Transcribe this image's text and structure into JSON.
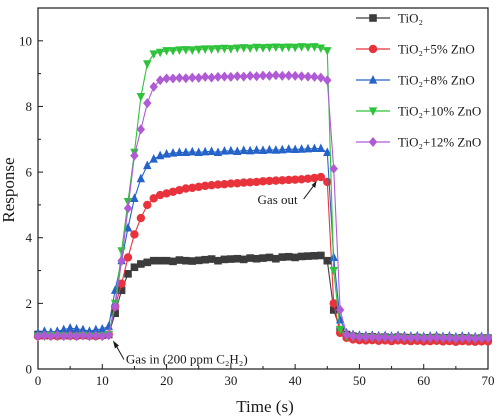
{
  "chart_data": {
    "type": "line",
    "xlabel": "Time (s)",
    "ylabel": "Response",
    "xlim": [
      0,
      70
    ],
    "ylim": [
      0,
      11
    ],
    "xticks": [
      0,
      10,
      20,
      30,
      40,
      50,
      60,
      70
    ],
    "yticks": [
      0,
      2,
      4,
      6,
      8,
      10
    ],
    "grid": false,
    "legend": "top-right",
    "x": [
      0,
      1,
      2,
      3,
      4,
      5,
      6,
      7,
      8,
      9,
      10,
      11,
      12,
      13,
      14,
      15,
      16,
      17,
      18,
      19,
      20,
      21,
      22,
      23,
      24,
      25,
      26,
      27,
      28,
      29,
      30,
      31,
      32,
      33,
      34,
      35,
      36,
      37,
      38,
      39,
      40,
      41,
      42,
      43,
      44,
      45,
      46,
      47,
      48,
      49,
      50,
      51,
      52,
      53,
      54,
      55,
      56,
      57,
      58,
      59,
      60,
      61,
      62,
      63,
      64,
      65,
      66,
      67,
      68,
      69,
      70
    ],
    "series": [
      {
        "name": "TiO₂",
        "color": "#3c3c3c",
        "marker": "square",
        "values": [
          1.05,
          1.02,
          1.03,
          1.04,
          1.02,
          1.05,
          1.03,
          1.04,
          1.02,
          1.05,
          1.03,
          1.05,
          1.7,
          2.4,
          2.9,
          3.1,
          3.2,
          3.25,
          3.3,
          3.3,
          3.3,
          3.28,
          3.32,
          3.3,
          3.29,
          3.31,
          3.33,
          3.35,
          3.3,
          3.34,
          3.35,
          3.36,
          3.34,
          3.38,
          3.36,
          3.38,
          3.4,
          3.36,
          3.41,
          3.42,
          3.4,
          3.43,
          3.44,
          3.45,
          3.46,
          3.3,
          1.8,
          1.2,
          1.05,
          1.0,
          0.98,
          0.97,
          0.98,
          0.96,
          0.97,
          0.95,
          0.97,
          0.96,
          0.95,
          0.96,
          0.94,
          0.95,
          0.96,
          0.94,
          0.95,
          0.93,
          0.95,
          0.94,
          0.93,
          0.94,
          0.94
        ]
      },
      {
        "name": "TiO₂+5% ZnO",
        "color": "#e8333c",
        "marker": "circle",
        "values": [
          1.0,
          1.02,
          1.01,
          1.0,
          1.02,
          1.01,
          1.0,
          1.02,
          1.01,
          1.0,
          1.02,
          1.05,
          1.9,
          2.6,
          3.4,
          4.1,
          4.6,
          5.0,
          5.2,
          5.3,
          5.35,
          5.4,
          5.45,
          5.5,
          5.52,
          5.55,
          5.58,
          5.6,
          5.62,
          5.63,
          5.65,
          5.66,
          5.68,
          5.69,
          5.7,
          5.72,
          5.73,
          5.74,
          5.75,
          5.76,
          5.77,
          5.78,
          5.8,
          5.82,
          5.85,
          5.7,
          2.0,
          1.1,
          0.95,
          0.9,
          0.88,
          0.87,
          0.88,
          0.86,
          0.87,
          0.85,
          0.87,
          0.86,
          0.85,
          0.86,
          0.84,
          0.85,
          0.86,
          0.84,
          0.85,
          0.83,
          0.85,
          0.84,
          0.83,
          0.84,
          0.84
        ]
      },
      {
        "name": "TiO₂+8% ZnO",
        "color": "#2563c9",
        "marker": "triangle-up",
        "values": [
          1.1,
          1.15,
          1.12,
          1.15,
          1.2,
          1.25,
          1.22,
          1.2,
          1.15,
          1.2,
          1.22,
          1.3,
          2.4,
          3.3,
          4.3,
          5.2,
          5.8,
          6.2,
          6.4,
          6.5,
          6.55,
          6.58,
          6.6,
          6.6,
          6.62,
          6.6,
          6.62,
          6.63,
          6.6,
          6.64,
          6.65,
          6.63,
          6.66,
          6.65,
          6.67,
          6.66,
          6.68,
          6.67,
          6.68,
          6.7,
          6.69,
          6.7,
          6.71,
          6.72,
          6.72,
          6.6,
          3.4,
          1.5,
          1.1,
          1.05,
          1.03,
          1.02,
          1.03,
          1.01,
          1.02,
          1.0,
          1.02,
          1.01,
          1.0,
          1.01,
          0.99,
          1.0,
          1.01,
          0.99,
          1.0,
          0.98,
          1.0,
          0.99,
          0.98,
          0.99,
          0.99
        ]
      },
      {
        "name": "TiO₂+10% ZnO",
        "color": "#2fc23b",
        "marker": "triangle-down",
        "values": [
          1.0,
          1.0,
          1.02,
          1.0,
          1.01,
          1.0,
          1.0,
          1.02,
          1.0,
          1.0,
          1.01,
          1.05,
          2.0,
          3.6,
          5.1,
          6.6,
          8.3,
          9.3,
          9.6,
          9.65,
          9.7,
          9.7,
          9.72,
          9.73,
          9.72,
          9.74,
          9.75,
          9.75,
          9.76,
          9.77,
          9.76,
          9.78,
          9.79,
          9.78,
          9.8,
          9.79,
          9.8,
          9.81,
          9.8,
          9.81,
          9.8,
          9.82,
          9.81,
          9.82,
          9.78,
          9.7,
          3.0,
          1.2,
          1.0,
          0.97,
          0.96,
          0.95,
          0.96,
          0.94,
          0.95,
          0.93,
          0.95,
          0.94,
          0.93,
          0.94,
          0.92,
          0.93,
          0.94,
          0.92,
          0.93,
          0.91,
          0.93,
          0.92,
          0.91,
          0.92,
          0.92
        ]
      },
      {
        "name": "TiO₂+12% ZnO",
        "color": "#b05bd6",
        "marker": "diamond",
        "values": [
          1.0,
          1.02,
          1.0,
          1.03,
          1.0,
          1.02,
          1.0,
          1.03,
          1.0,
          1.02,
          1.0,
          1.03,
          1.9,
          3.3,
          4.9,
          6.5,
          7.3,
          8.1,
          8.6,
          8.8,
          8.85,
          8.85,
          8.87,
          8.86,
          8.88,
          8.87,
          8.9,
          8.88,
          8.9,
          8.91,
          8.9,
          8.92,
          8.91,
          8.93,
          8.92,
          8.94,
          8.93,
          8.95,
          8.93,
          8.94,
          8.93,
          8.92,
          8.91,
          8.9,
          8.88,
          8.8,
          6.1,
          1.8,
          1.05,
          1.0,
          0.98,
          0.97,
          0.98,
          0.96,
          0.97,
          0.95,
          0.97,
          0.96,
          0.95,
          0.96,
          0.94,
          0.95,
          0.96,
          0.94,
          0.95,
          0.93,
          0.95,
          0.94,
          0.93,
          0.94,
          0.94
        ]
      }
    ],
    "annotations": [
      {
        "text": "Gas out",
        "x": 43.5,
        "y": 5.85
      },
      {
        "text": "Gas in (200 ppm C₂H₂)",
        "x": 11.5,
        "y": 0.9
      }
    ]
  }
}
